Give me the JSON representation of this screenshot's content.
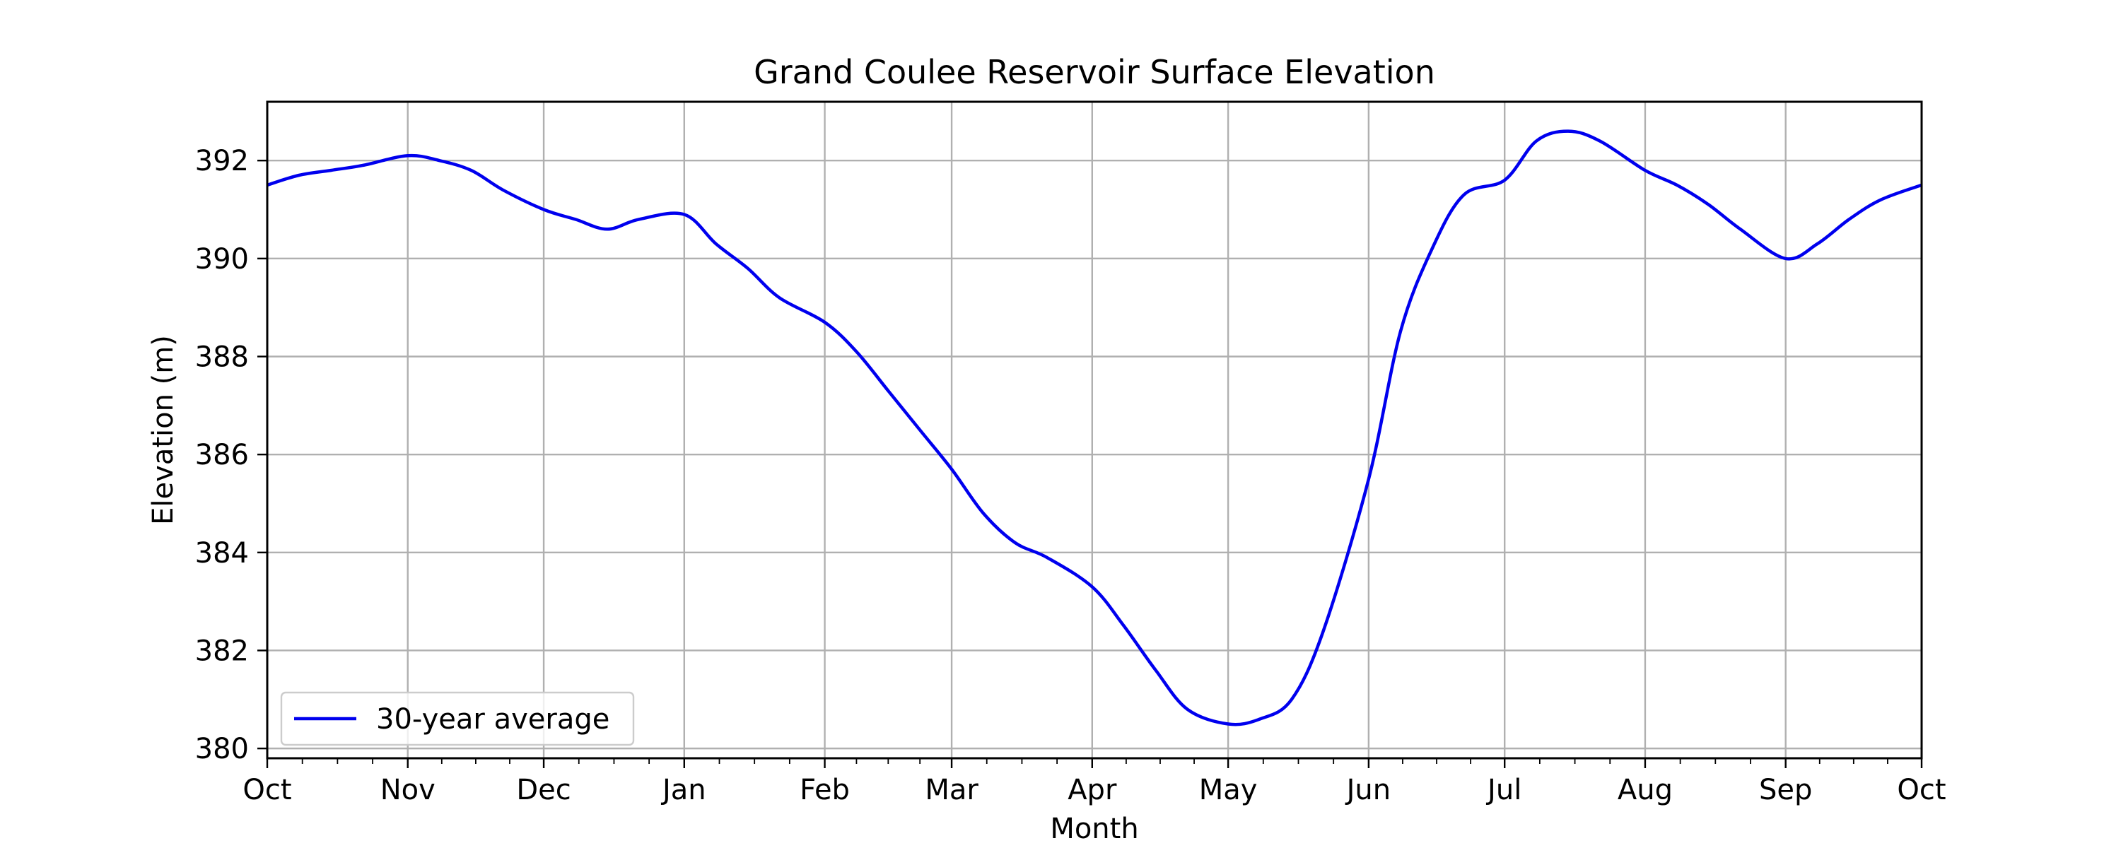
{
  "chart_data": {
    "type": "line",
    "title": "Grand Coulee Reservoir Surface Elevation",
    "xlabel": "Month",
    "ylabel": "Elevation (m)",
    "x_ticks": [
      "Oct",
      "Nov",
      "Dec",
      "Jan",
      "Feb",
      "Mar",
      "Apr",
      "May",
      "Jun",
      "Jul",
      "Aug",
      "Sep",
      "Oct"
    ],
    "y_ticks": [
      380,
      382,
      384,
      386,
      388,
      390,
      392
    ],
    "xlim": [
      "Oct 1",
      "Oct 1 (following year)"
    ],
    "ylim": [
      379.8,
      393.2
    ],
    "grid": true,
    "legend": {
      "position": "lower-left"
    },
    "series": [
      {
        "name": "30-year average",
        "color": "#0000ee",
        "x": [
          "Oct 1",
          "Oct 8",
          "Oct 15",
          "Oct 22",
          "Nov 1",
          "Nov 8",
          "Nov 15",
          "Nov 22",
          "Dec 1",
          "Dec 8",
          "Dec 15",
          "Dec 22",
          "Jan 1",
          "Jan 8",
          "Jan 15",
          "Jan 22",
          "Feb 1",
          "Feb 8",
          "Feb 15",
          "Feb 22",
          "Mar 1",
          "Mar 8",
          "Mar 15",
          "Mar 22",
          "Apr 1",
          "Apr 8",
          "Apr 15",
          "Apr 22",
          "May 1",
          "May 8",
          "May 15",
          "May 22",
          "Jun 1",
          "Jun 8",
          "Jun 15",
          "Jun 22",
          "Jul 1",
          "Jul 8",
          "Jul 15",
          "Jul 22",
          "Aug 1",
          "Aug 8",
          "Aug 15",
          "Aug 22",
          "Sep 1",
          "Sep 8",
          "Sep 15",
          "Sep 22",
          "Oct 1"
        ],
        "y": [
          391.5,
          391.7,
          391.8,
          391.9,
          392.1,
          392.0,
          391.8,
          391.4,
          391.0,
          390.8,
          390.6,
          390.8,
          390.9,
          390.3,
          389.8,
          389.2,
          388.7,
          388.1,
          387.3,
          386.5,
          385.7,
          384.8,
          384.2,
          383.9,
          383.3,
          382.5,
          381.6,
          380.8,
          380.5,
          380.6,
          381.0,
          382.4,
          385.5,
          388.5,
          390.2,
          391.3,
          391.6,
          392.4,
          392.6,
          392.4,
          391.8,
          391.5,
          391.1,
          390.6,
          390.0,
          390.3,
          390.8,
          391.2,
          391.5
        ]
      }
    ]
  }
}
